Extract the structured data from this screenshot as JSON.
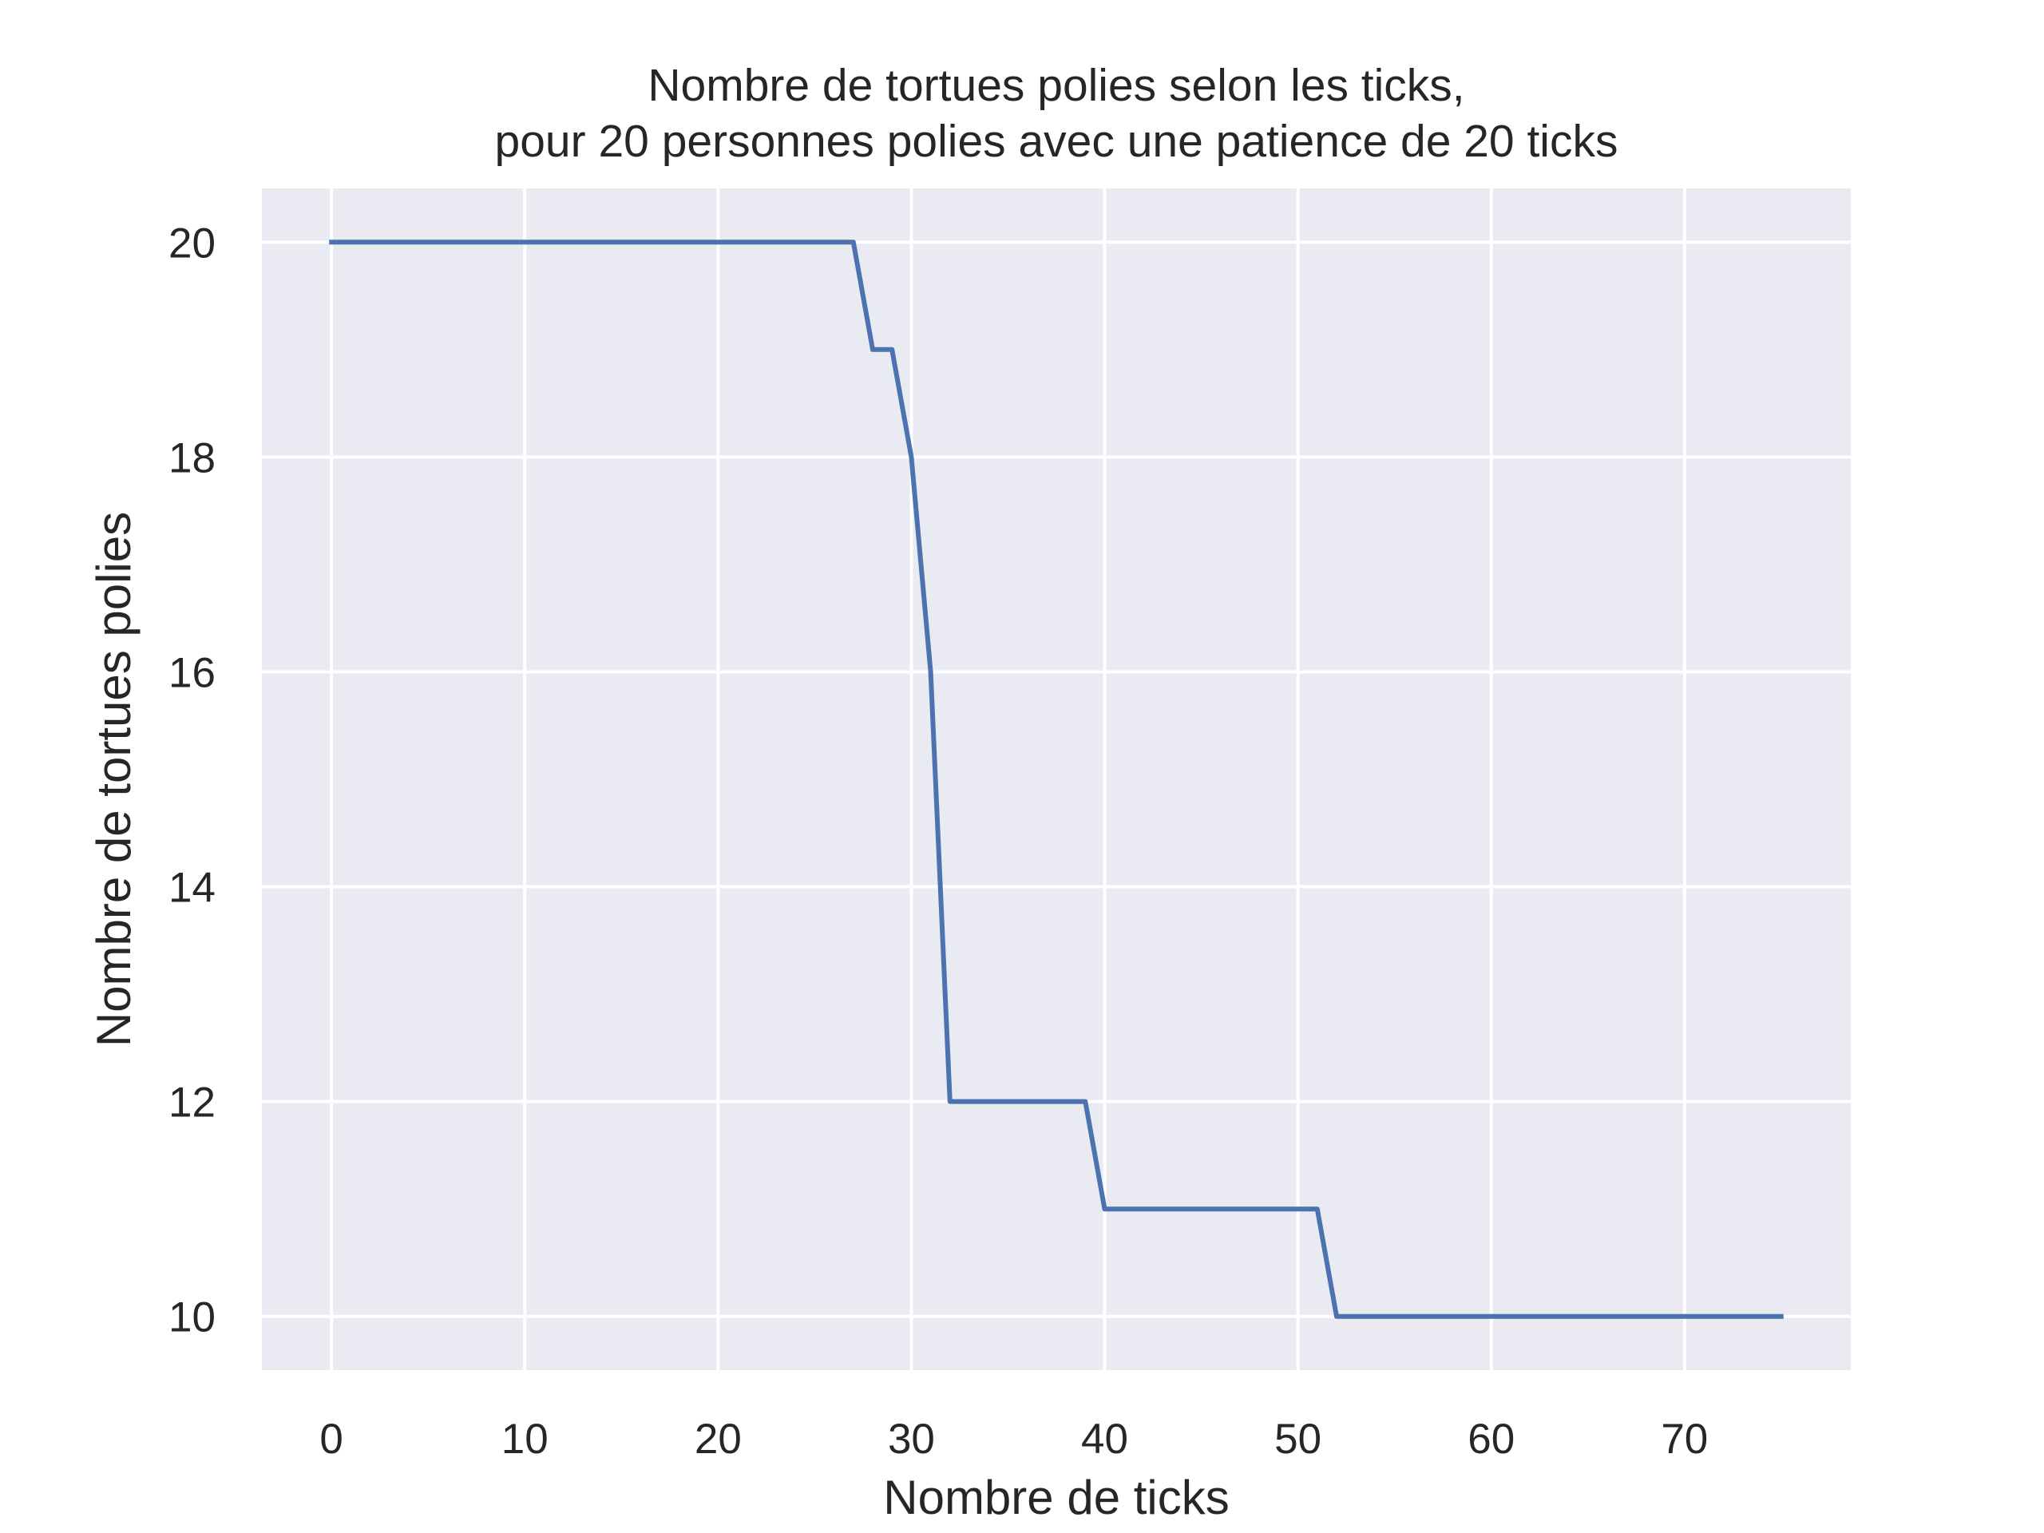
{
  "chart_data": {
    "type": "line",
    "title_lines": [
      "Nombre de tortues polies selon les ticks,",
      "pour 20 personnes polies avec une patience de 20 ticks"
    ],
    "xlabel": "Nombre de ticks",
    "ylabel": "Nombre de tortues polies",
    "xlim": [
      -3.6,
      78.6
    ],
    "ylim": [
      9.5,
      20.5
    ],
    "xticks": [
      0,
      10,
      20,
      30,
      40,
      50,
      60,
      70
    ],
    "yticks": [
      10,
      12,
      14,
      16,
      18,
      20
    ],
    "xtick_labels": [
      "0",
      "10",
      "20",
      "30",
      "40",
      "50",
      "60",
      "70"
    ],
    "ytick_labels": [
      "10",
      "12",
      "14",
      "16",
      "18",
      "20"
    ],
    "grid": true,
    "legend": null,
    "colors": {
      "plot_background": "#EAEAF2",
      "grid": "#FFFFFF",
      "line": "#4C72B0",
      "text": "#262626"
    },
    "series": [
      {
        "x": [
          0,
          27,
          28,
          29,
          30,
          31,
          32,
          39,
          40,
          51,
          52,
          75
        ],
        "y": [
          20,
          20,
          19,
          19,
          18,
          16,
          12,
          12,
          11,
          11,
          10,
          10
        ]
      }
    ]
  }
}
